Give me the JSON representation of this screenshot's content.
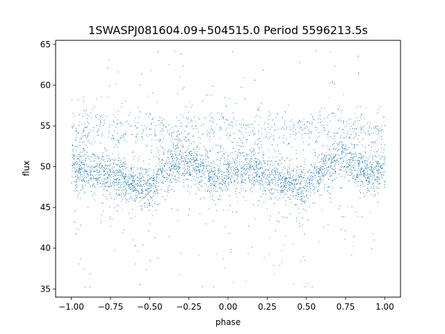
{
  "chart_data": {
    "type": "scatter",
    "title": "1SWASPJ081604.09+504515.0 Period 5596213.5s",
    "xlabel": "phase",
    "ylabel": "flux",
    "xlim": [
      -1.1,
      1.1
    ],
    "ylim": [
      34.0,
      65.5
    ],
    "xticks": [
      -1.0,
      -0.75,
      -0.5,
      -0.25,
      0.0,
      0.25,
      0.5,
      0.75,
      1.0
    ],
    "xtick_labels": [
      "−1.00",
      "−0.75",
      "−0.50",
      "−0.25",
      "0.00",
      "0.25",
      "0.50",
      "0.75",
      "1.00"
    ],
    "yticks": [
      35,
      40,
      45,
      50,
      55,
      60,
      65
    ],
    "ytick_labels": [
      "35",
      "40",
      "45",
      "50",
      "55",
      "60",
      "65"
    ],
    "grid": false,
    "point_color": "#1f77b4",
    "series": [
      {
        "phase_range": [
          -1.0,
          1.0
        ],
        "mean_flux_profile": {
          "phase": [
            -1.0,
            -0.9,
            -0.8,
            -0.7,
            -0.6,
            -0.5,
            -0.45,
            -0.4,
            -0.3,
            -0.2,
            -0.1,
            0.0,
            0.1,
            0.2,
            0.3,
            0.4,
            0.5,
            0.55,
            0.6,
            0.7,
            0.8,
            0.9,
            1.0
          ],
          "flux": [
            50.0,
            49.8,
            49.3,
            48.6,
            48.0,
            47.4,
            48.5,
            49.8,
            51.0,
            50.2,
            49.0,
            49.2,
            49.8,
            49.3,
            48.6,
            48.0,
            47.4,
            48.5,
            49.8,
            51.0,
            50.2,
            49.0,
            50.0
          ]
        },
        "upper_branch_flux": 54.5,
        "flux_extremes": [
          35.2,
          64.3
        ]
      }
    ]
  }
}
